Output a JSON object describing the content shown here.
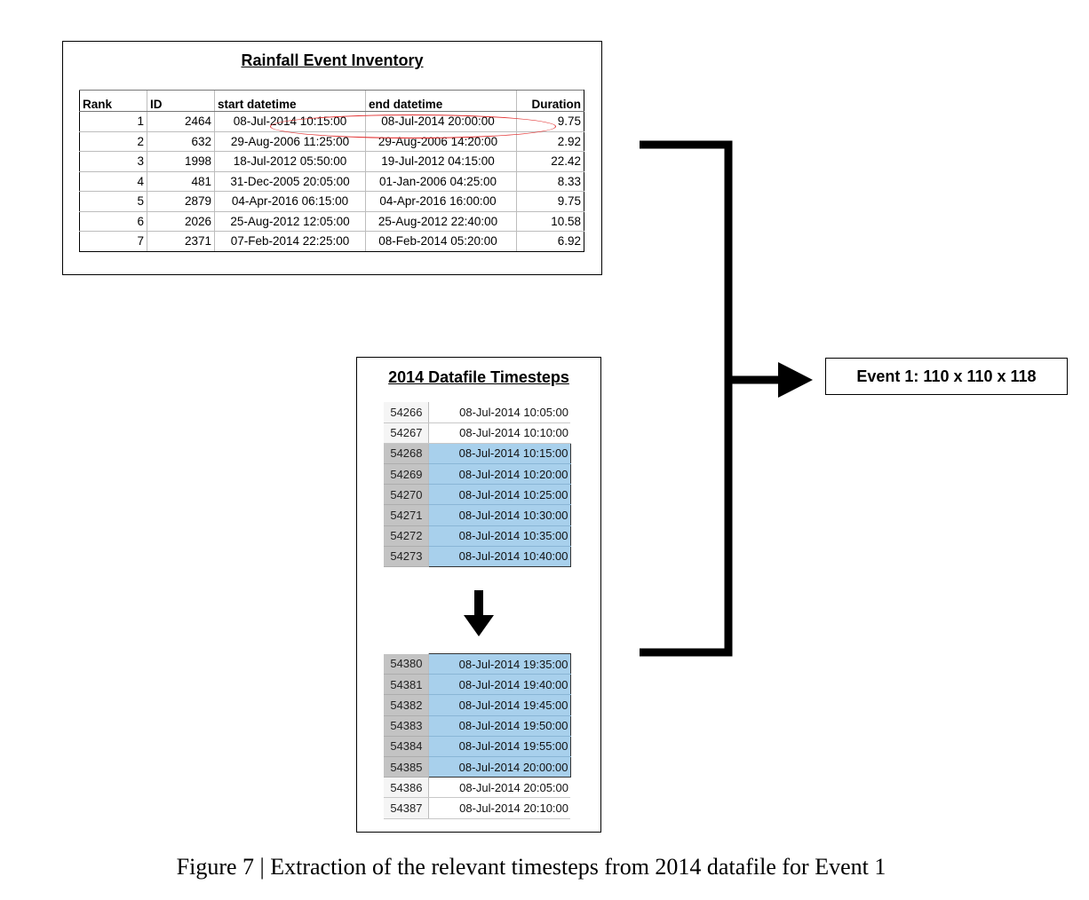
{
  "inventory": {
    "title": "Rainfall Event Inventory",
    "columns": [
      "Rank",
      "ID",
      "start datetime",
      "end datetime",
      "Duration"
    ],
    "rows": [
      [
        "1",
        "2464",
        "08-Jul-2014 10:15:00",
        "08-Jul-2014 20:00:00",
        "9.75"
      ],
      [
        "2",
        "632",
        "29-Aug-2006 11:25:00",
        "29-Aug-2006 14:20:00",
        "2.92"
      ],
      [
        "3",
        "1998",
        "18-Jul-2012 05:50:00",
        "19-Jul-2012 04:15:00",
        "22.42"
      ],
      [
        "4",
        "481",
        "31-Dec-2005 20:05:00",
        "01-Jan-2006 04:25:00",
        "8.33"
      ],
      [
        "5",
        "2879",
        "04-Apr-2016 06:15:00",
        "04-Apr-2016 16:00:00",
        "9.75"
      ],
      [
        "6",
        "2026",
        "25-Aug-2012 12:05:00",
        "25-Aug-2012 22:40:00",
        "10.58"
      ],
      [
        "7",
        "2371",
        "07-Feb-2014 22:25:00",
        "08-Feb-2014 05:20:00",
        "6.92"
      ]
    ]
  },
  "timesteps": {
    "title": "2014 Datafile Timesteps",
    "top_rows": [
      {
        "index": "54266",
        "datetime": "08-Jul-2014 10:05:00",
        "selected": false
      },
      {
        "index": "54267",
        "datetime": "08-Jul-2014 10:10:00",
        "selected": false
      },
      {
        "index": "54268",
        "datetime": "08-Jul-2014 10:15:00",
        "selected": true
      },
      {
        "index": "54269",
        "datetime": "08-Jul-2014 10:20:00",
        "selected": true
      },
      {
        "index": "54270",
        "datetime": "08-Jul-2014 10:25:00",
        "selected": true
      },
      {
        "index": "54271",
        "datetime": "08-Jul-2014 10:30:00",
        "selected": true
      },
      {
        "index": "54272",
        "datetime": "08-Jul-2014 10:35:00",
        "selected": true
      },
      {
        "index": "54273",
        "datetime": "08-Jul-2014 10:40:00",
        "selected": true
      }
    ],
    "bottom_rows": [
      {
        "index": "54380",
        "datetime": "08-Jul-2014 19:35:00",
        "selected": true
      },
      {
        "index": "54381",
        "datetime": "08-Jul-2014 19:40:00",
        "selected": true
      },
      {
        "index": "54382",
        "datetime": "08-Jul-2014 19:45:00",
        "selected": true
      },
      {
        "index": "54383",
        "datetime": "08-Jul-2014 19:50:00",
        "selected": true
      },
      {
        "index": "54384",
        "datetime": "08-Jul-2014 19:55:00",
        "selected": true
      },
      {
        "index": "54385",
        "datetime": "08-Jul-2014 20:00:00",
        "selected": true
      },
      {
        "index": "54386",
        "datetime": "08-Jul-2014 20:05:00",
        "selected": false
      },
      {
        "index": "54387",
        "datetime": "08-Jul-2014 20:10:00",
        "selected": false
      }
    ]
  },
  "event_box": {
    "label": "Event 1: 110 x 110 x 118"
  },
  "caption": "Figure 7 | Extraction of the relevant timesteps from 2014 datafile for Event 1",
  "colors": {
    "highlight_ellipse": "#e23030",
    "selected_cell": "#a8d0ec",
    "selected_index": "#c3c3c3"
  }
}
